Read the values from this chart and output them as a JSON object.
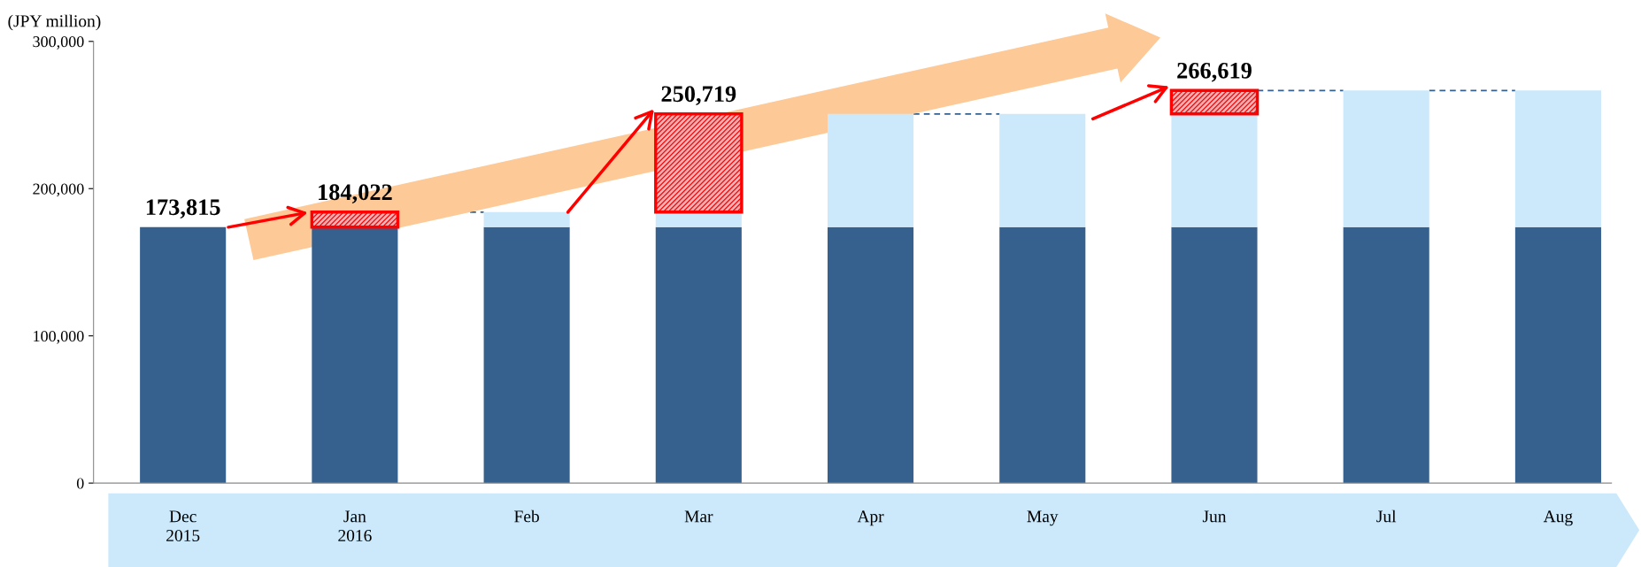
{
  "chart_data": {
    "type": "bar",
    "stacked": true,
    "ylabel": "(JPY million)",
    "categories": [
      "Dec\n2015",
      "Jan\n2016",
      "Feb",
      "Mar",
      "Apr",
      "May",
      "Jun",
      "Jul",
      "Aug"
    ],
    "series": [
      {
        "color": "#36618f",
        "values": [
          173815,
          173815,
          173815,
          173815,
          173815,
          173815,
          173815,
          173815,
          173815
        ]
      },
      {
        "color": "#cce9fb",
        "values": [
          null,
          null,
          10207,
          10207,
          76904,
          76904,
          76904,
          92804,
          92804
        ]
      },
      {
        "color": "#ff0000",
        "values": [
          null,
          10207,
          null,
          66697,
          null,
          null,
          15900,
          null,
          null
        ]
      }
    ],
    "totals": [
      "173,815",
      "184,022",
      null,
      "250,719",
      null,
      null,
      "266,619",
      null,
      null
    ],
    "ylim": [
      0,
      300000
    ],
    "yticks": [
      {
        "value": 0,
        "label": "0"
      },
      {
        "value": 100000,
        "label": "100,000"
      },
      {
        "value": 200000,
        "label": "200,000"
      },
      {
        "value": 300000,
        "label": "300,000"
      }
    ],
    "grid": false,
    "legend": false
  }
}
